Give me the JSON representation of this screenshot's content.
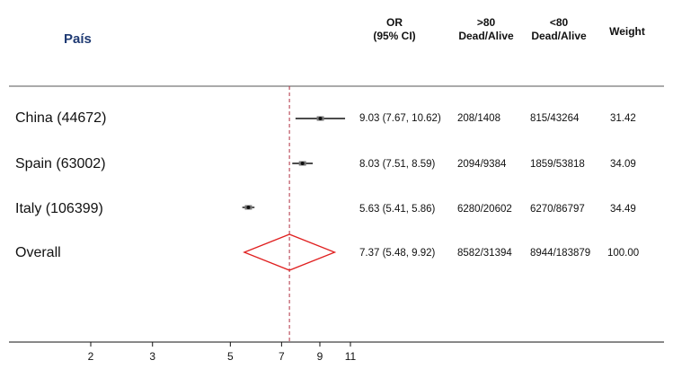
{
  "header": {
    "pais": "País",
    "or_line1": "OR",
    "or_line2": "(95% CI)",
    "g1_line1": ">80",
    "g1_line2": "Dead/Alive",
    "g2_line1": "<80",
    "g2_line2": "Dead/Alive",
    "weight": "Weight"
  },
  "chart_data": {
    "type": "forest",
    "scale": "log",
    "null_line": 7.37,
    "x_ticks": [
      2,
      3,
      5,
      7,
      9,
      11
    ],
    "rows": [
      {
        "label": "China (44672)",
        "or": 9.03,
        "lo": 7.67,
        "hi": 10.62,
        "or_ci": "9.03 (7.67, 10.62)",
        "g1": "208/1408",
        "g2": "815/43264",
        "weight": "31.42"
      },
      {
        "label": "Spain (63002)",
        "or": 8.03,
        "lo": 7.51,
        "hi": 8.59,
        "or_ci": "8.03 (7.51, 8.59)",
        "g1": "2094/9384",
        "g2": "1859/53818",
        "weight": "34.09"
      },
      {
        "label": "Italy (106399)",
        "or": 5.63,
        "lo": 5.41,
        "hi": 5.86,
        "or_ci": "5.63 (5.41, 5.86)",
        "g1": "6280/20602",
        "g2": "6270/86797",
        "weight": "34.49"
      }
    ],
    "overall": {
      "label": "Overall",
      "or": 7.37,
      "lo": 5.48,
      "hi": 9.92,
      "or_ci": "7.37 (5.48, 9.92)",
      "g1": "8582/31394",
      "g2": "8944/183879",
      "weight": "100.00"
    },
    "colors": {
      "diamond": "#e02020",
      "null_line": "#b03040",
      "marks": "#111111"
    }
  }
}
